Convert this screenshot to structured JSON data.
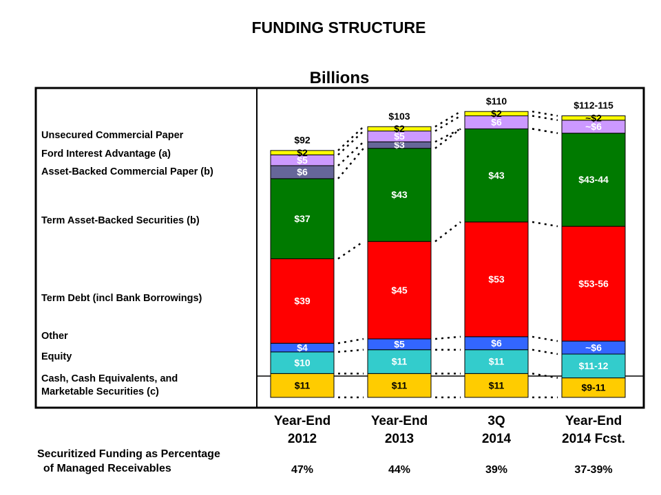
{
  "chart_data": {
    "type": "stacked-bar",
    "title": "FUNDING STRUCTURE",
    "subtitle": "Billions",
    "categories": [
      "Year-End\n2012",
      "Year-End\n2013",
      "3Q\n2014",
      "Year-End\n2014 Fcst."
    ],
    "series": [
      {
        "name": "Cash, Cash Equivalents, and\nMarketable Securities (c)",
        "color": "#ffcc00",
        "values": [
          11,
          11,
          11,
          9
        ],
        "value_labels": [
          "$11",
          "$11",
          "$11",
          "$9-11"
        ]
      },
      {
        "name": "Equity",
        "color": "#33cccc",
        "values": [
          10,
          11,
          11,
          11
        ],
        "value_labels": [
          "$10",
          "$11",
          "$11",
          "$11-12"
        ]
      },
      {
        "name": "Other",
        "color": "#3366ff",
        "values": [
          4,
          5,
          6,
          6
        ],
        "value_labels": [
          "$4",
          "$5",
          "$6",
          "~$6"
        ]
      },
      {
        "name": "Term Debt (incl Bank Borrowings)",
        "color": "#ff0000",
        "values": [
          39,
          45,
          53,
          53
        ],
        "value_labels": [
          "$39",
          "$45",
          "$53",
          "$53-56"
        ]
      },
      {
        "name": "Term Asset-Backed Securities (b)",
        "color": "#007a00",
        "values": [
          37,
          43,
          43,
          43
        ],
        "value_labels": [
          "$37",
          "$43",
          "$43",
          "$43-44"
        ]
      },
      {
        "name": "Asset-Backed Commercial Paper (b)",
        "color": "#666699",
        "values": [
          6,
          3,
          null,
          null
        ],
        "value_labels": [
          "$6",
          "$3",
          null,
          null
        ]
      },
      {
        "name": "Ford Interest Advantage (a)",
        "color": "#cc99ff",
        "values": [
          5,
          5,
          6,
          6
        ],
        "value_labels": [
          "$5",
          "$5",
          "$6",
          "~$6"
        ]
      },
      {
        "name": "Unsecured Commercial Paper",
        "color": "#ffff00",
        "values": [
          2,
          2,
          2,
          2
        ],
        "value_labels": [
          "$2",
          "$2",
          "$2",
          "~$2"
        ]
      }
    ],
    "totals": {
      "values": [
        92,
        103,
        110,
        112
      ],
      "value_labels": [
        "$92",
        "$103",
        "$110",
        "$112-115"
      ]
    },
    "securitized": {
      "label": "Securitized Funding as Percentage\n  of Managed Receivables",
      "values": [
        47,
        44,
        39,
        37
      ],
      "value_labels": [
        "47%",
        "44%",
        "39%",
        "37-39%"
      ]
    }
  }
}
